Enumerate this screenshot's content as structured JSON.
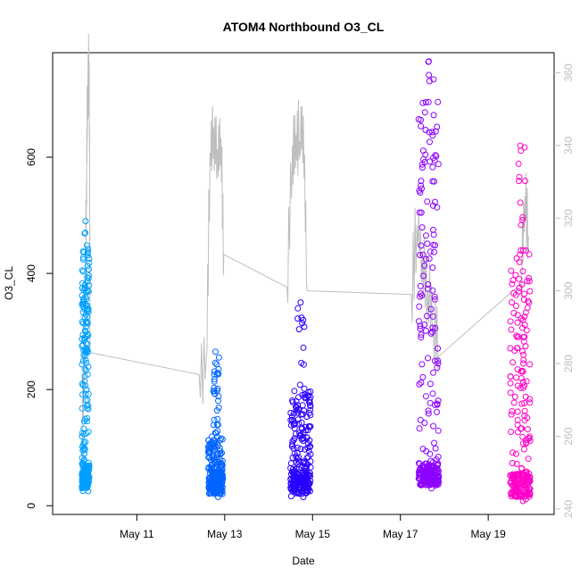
{
  "chart_data": {
    "type": "scatter",
    "title": "ATOM4 Northbound O3_CL",
    "xlabel": "Date",
    "ylabel": "O3_CL",
    "xlim": [
      "2016-05-09T02:00",
      "2016-05-20T12:00"
    ],
    "ylim": [
      -15,
      780
    ],
    "x_ticks": [
      {
        "date": "2016-05-11",
        "label": "May 11"
      },
      {
        "date": "2016-05-13",
        "label": "May 13"
      },
      {
        "date": "2016-05-15",
        "label": "May 15"
      },
      {
        "date": "2016-05-17",
        "label": "May 17"
      },
      {
        "date": "2016-05-19",
        "label": "May 19"
      }
    ],
    "y_ticks": [
      0,
      200,
      400,
      600
    ],
    "y2_ticks": [
      240,
      260,
      280,
      300,
      320,
      340,
      360
    ],
    "y2lim": [
      238.5,
      365.5
    ],
    "grid": false,
    "legend": "none",
    "line_color": "#bebebe",
    "series": [
      {
        "color": "#00a0ff",
        "x_start": "2016-05-09T18:00",
        "x_end": "2016-05-09T22:00",
        "low": 25,
        "high": 490,
        "core_low": 30,
        "core_high": 450
      },
      {
        "color": "#0064ff",
        "x_start": "2016-05-12T15:00",
        "x_end": "2016-05-12T23:00",
        "low": 15,
        "high": 265,
        "core_low": 20,
        "core_high": 120
      },
      {
        "color": "#2800ff",
        "x_start": "2016-05-14T12:00",
        "x_end": "2016-05-14T23:00",
        "low": 15,
        "high": 350,
        "core_low": 20,
        "core_high": 200
      },
      {
        "color": "#8c00ff",
        "x_start": "2016-05-17T10:00",
        "x_end": "2016-05-17T21:00",
        "low": 30,
        "high": 765,
        "core_low": 35,
        "core_high": 720
      },
      {
        "color": "#ff00c8",
        "x_start": "2016-05-19T12:00",
        "x_end": "2016-05-19T23:00",
        "low": 8,
        "high": 620,
        "core_low": 15,
        "core_high": 440
      }
    ],
    "gray_line": {
      "note": "right-axis series",
      "points": [
        [
          "2016-05-09T18:00",
          254
        ],
        [
          "2016-05-09T19:30",
          290
        ],
        [
          "2016-05-09T20:30",
          330
        ],
        [
          "2016-05-09T21:00",
          355
        ],
        [
          "2016-05-09T22:00",
          363
        ],
        [
          "2016-05-09T22:30",
          283
        ],
        [
          "2016-05-12T10:00",
          277
        ],
        [
          "2016-05-12T14:00",
          282
        ],
        [
          "2016-05-12T16:00",
          338
        ],
        [
          "2016-05-12T18:00",
          345
        ],
        [
          "2016-05-12T20:00",
          339
        ],
        [
          "2016-05-12T22:00",
          342
        ],
        [
          "2016-05-12T23:30",
          310
        ],
        [
          "2016-05-14T10:00",
          301
        ],
        [
          "2016-05-14T13:00",
          340
        ],
        [
          "2016-05-14T15:00",
          343
        ],
        [
          "2016-05-14T17:00",
          341
        ],
        [
          "2016-05-14T19:00",
          348
        ],
        [
          "2016-05-14T21:00",
          300
        ],
        [
          "2016-05-17T06:00",
          299
        ],
        [
          "2016-05-17T09:00",
          318
        ],
        [
          "2016-05-17T12:00",
          310
        ],
        [
          "2016-05-17T15:00",
          300
        ],
        [
          "2016-05-17T18:00",
          290
        ],
        [
          "2016-05-17T21:00",
          282
        ],
        [
          "2016-05-19T18:00",
          302
        ],
        [
          "2016-05-19T20:00",
          326
        ],
        [
          "2016-05-19T22:00",
          315
        ]
      ]
    }
  }
}
